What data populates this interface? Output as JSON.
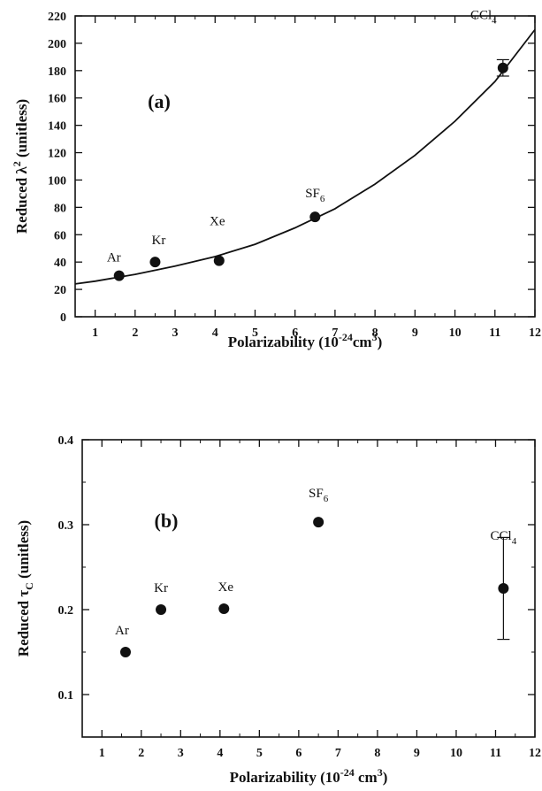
{
  "chart_data": [
    {
      "type": "scatter",
      "panel_label": "(a)",
      "xlabel": {
        "main": "Polarizability (10",
        "sup1": "-24",
        "mid": "cm",
        "sup2": "3",
        "end": ")"
      },
      "ylabel": {
        "main": "Reduced λ",
        "sup": "2",
        "end": " (unitless)"
      },
      "xlim": [
        0.5,
        12
      ],
      "ylim": [
        0,
        220
      ],
      "x_ticks": [
        1,
        2,
        3,
        4,
        5,
        6,
        7,
        8,
        9,
        10,
        11,
        12
      ],
      "y_ticks": [
        0,
        20,
        40,
        60,
        80,
        100,
        120,
        140,
        160,
        180,
        200,
        220
      ],
      "points": [
        {
          "label": "Ar",
          "x": 1.6,
          "y": 30
        },
        {
          "label": "Kr",
          "x": 2.5,
          "y": 40
        },
        {
          "label": "Xe",
          "x": 4.1,
          "y": 41
        },
        {
          "label": "SF6",
          "x": 6.5,
          "y": 73
        },
        {
          "label": "CCl4",
          "x": 11.2,
          "y": 182,
          "error": 6
        }
      ],
      "fit_curve": {
        "x": [
          0.5,
          1,
          2,
          3,
          4,
          5,
          6,
          7,
          8,
          9,
          10,
          11,
          12
        ],
        "y": [
          24,
          26,
          31,
          37,
          44,
          53,
          65,
          79,
          97,
          118,
          143,
          172,
          210
        ]
      }
    },
    {
      "type": "scatter",
      "panel_label": "(b)",
      "xlabel": {
        "main": "Polarizability (10",
        "sup1": "-24",
        "mid": " cm",
        "sup2": "3",
        "end": ")"
      },
      "ylabel": {
        "main": "Reduced τ",
        "sub": "C",
        "end": " (unitless)"
      },
      "xlim": [
        0.5,
        12
      ],
      "ylim": [
        0.05,
        0.4
      ],
      "x_ticks": [
        1,
        2,
        3,
        4,
        5,
        6,
        7,
        8,
        9,
        10,
        11,
        12
      ],
      "y_ticks": [
        0.1,
        0.2,
        0.3,
        0.4
      ],
      "y_tick_labels": [
        "0.1",
        "0.2",
        "0.3",
        "0.4"
      ],
      "points": [
        {
          "label": "Ar",
          "x": 1.6,
          "y": 0.15
        },
        {
          "label": "Kr",
          "x": 2.5,
          "y": 0.2
        },
        {
          "label": "Xe",
          "x": 4.1,
          "y": 0.201
        },
        {
          "label": "SF6",
          "x": 6.5,
          "y": 0.303
        },
        {
          "label": "CCl4",
          "x": 11.2,
          "y": 0.225,
          "error": 0.06
        }
      ]
    }
  ]
}
